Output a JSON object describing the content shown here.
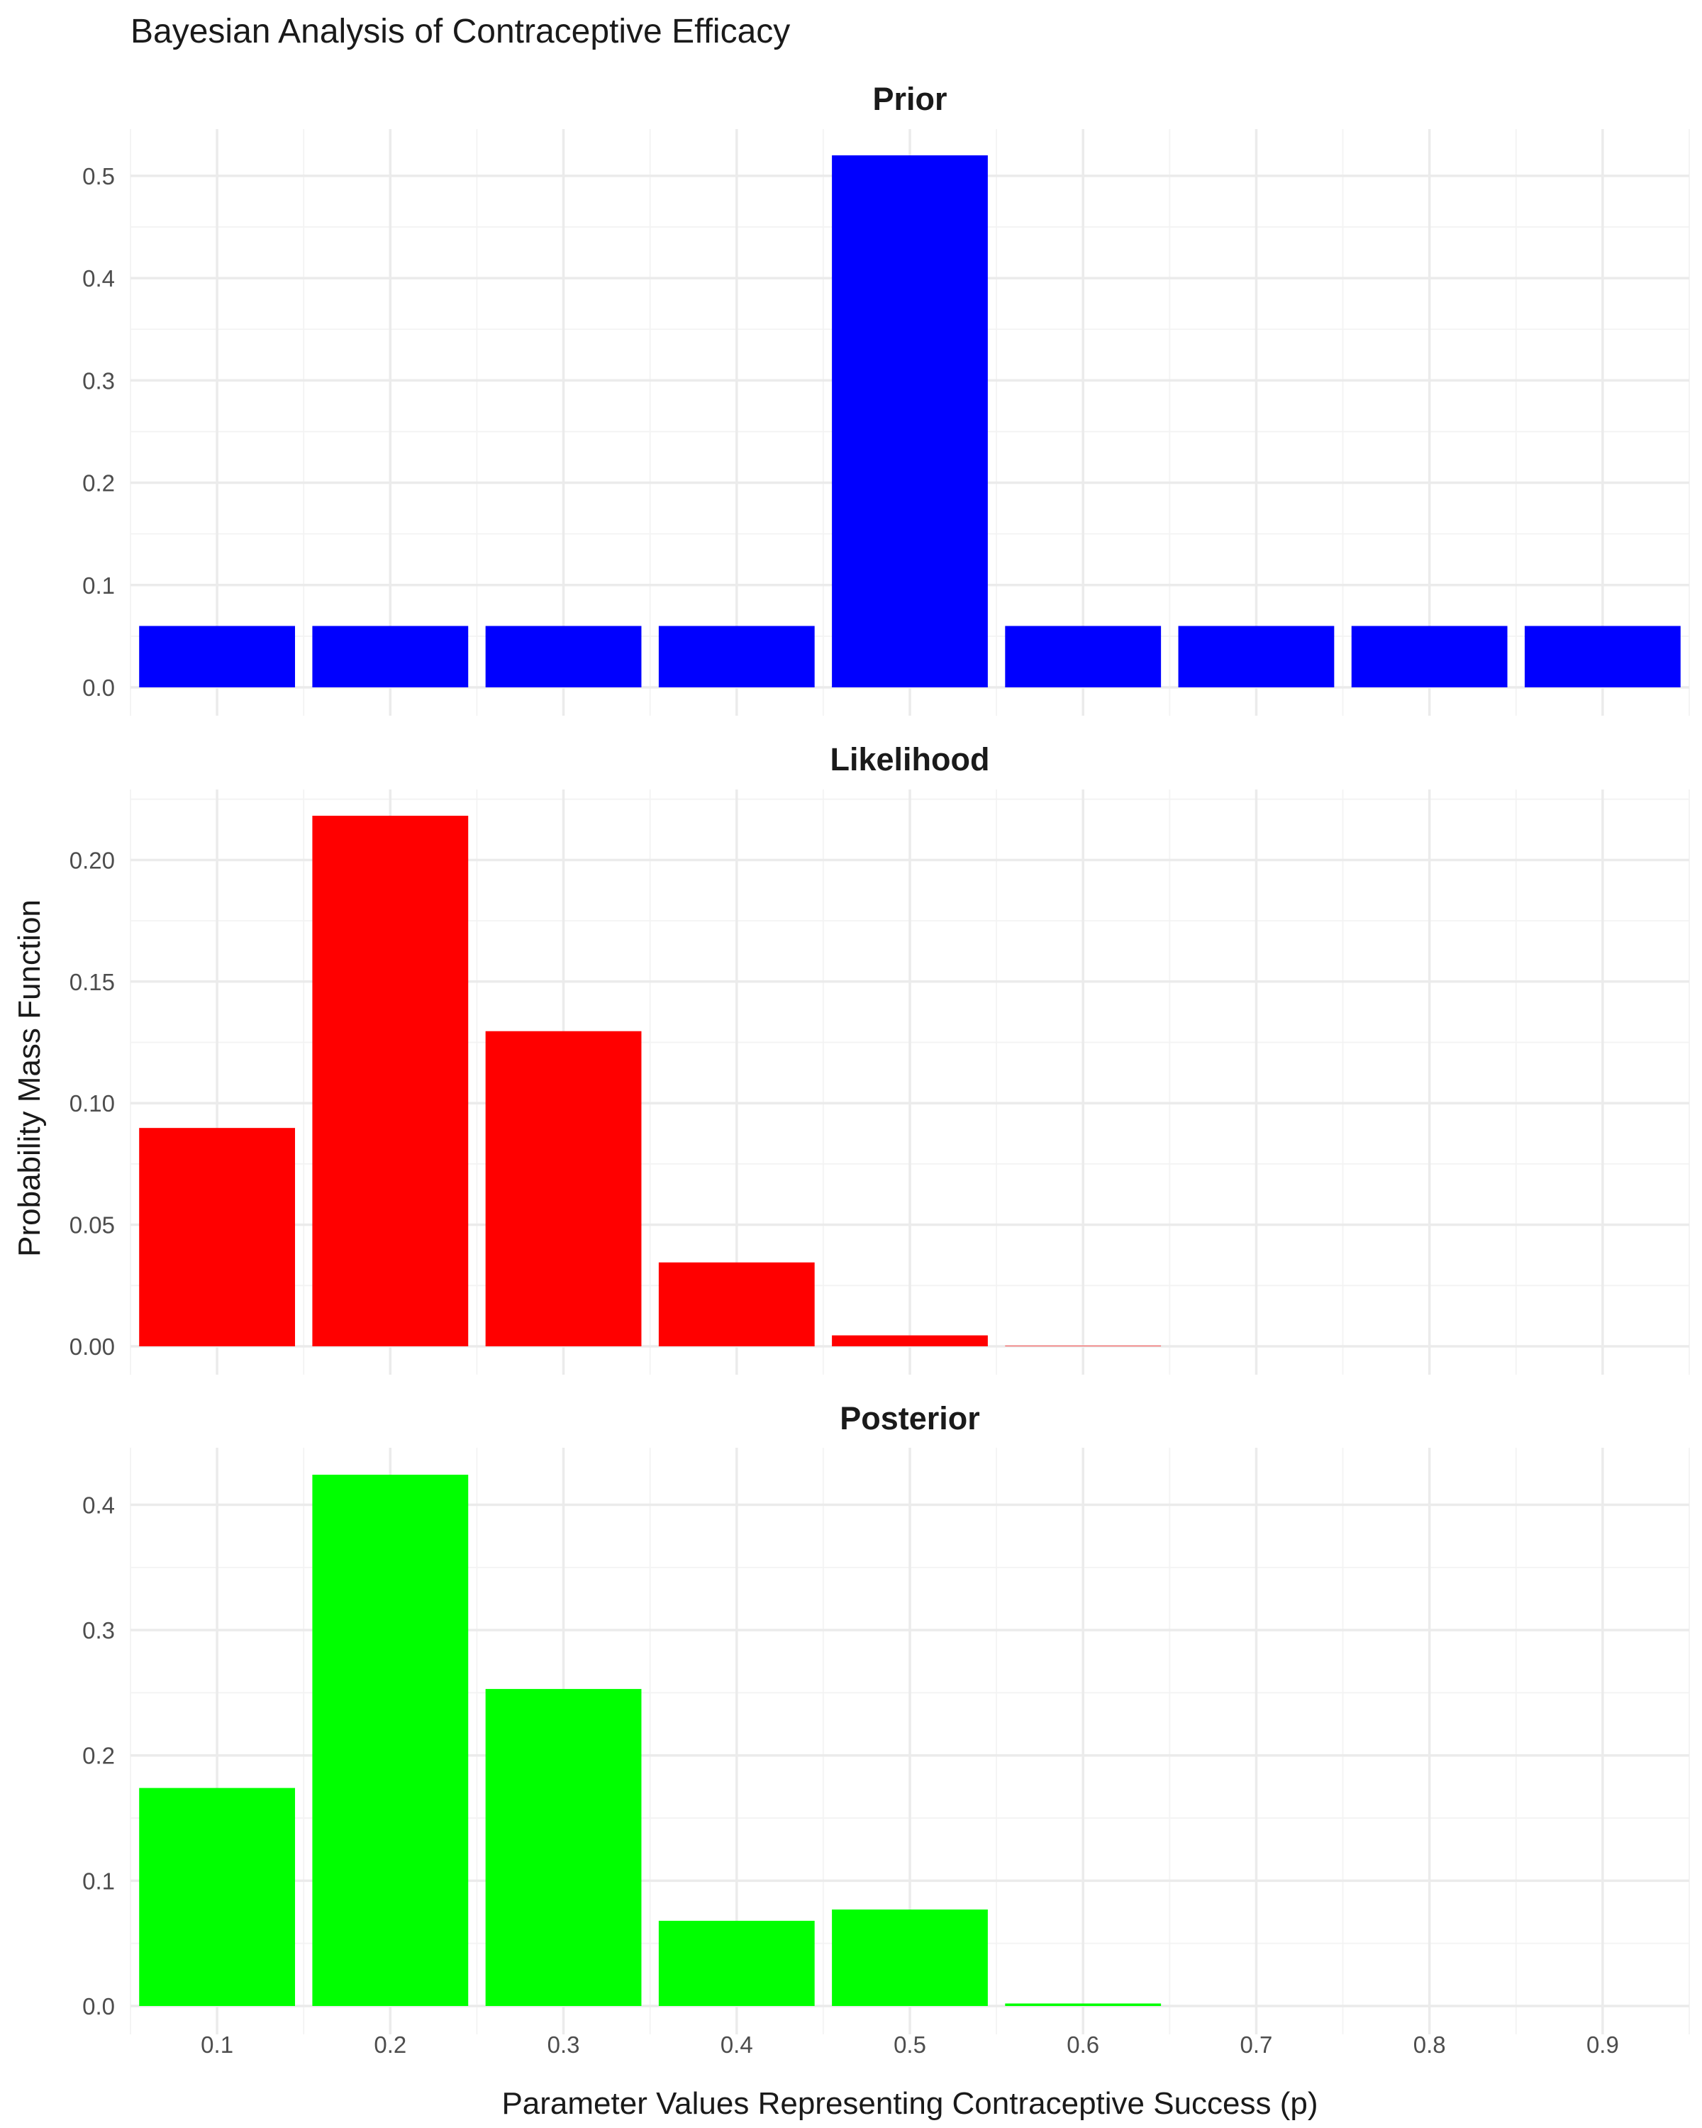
{
  "chart_data": {
    "type": "bar",
    "title": "Bayesian Analysis of Contraceptive Efficacy",
    "xlabel": "Parameter Values Representing Contraceptive Success (p)",
    "ylabel": "Probability Mass Function",
    "x": [
      0.1,
      0.2,
      0.3,
      0.4,
      0.5,
      0.6,
      0.7,
      0.8,
      0.9
    ],
    "x_tick_labels": [
      "0.1",
      "0.2",
      "0.3",
      "0.4",
      "0.5",
      "0.6",
      "0.7",
      "0.8",
      "0.9"
    ],
    "xlim": [
      0.05,
      0.95
    ],
    "grid": true,
    "legend": "none",
    "facets": [
      {
        "name": "Prior",
        "color": "#0000FF",
        "values": [
          0.06,
          0.06,
          0.06,
          0.06,
          0.52,
          0.06,
          0.06,
          0.06,
          0.06
        ],
        "ylim": [
          0,
          0.52
        ],
        "y_ticks": [
          0.0,
          0.1,
          0.2,
          0.3,
          0.4,
          0.5
        ],
        "y_tick_labels": [
          "0.0",
          "0.1",
          "0.2",
          "0.3",
          "0.4",
          "0.5"
        ]
      },
      {
        "name": "Likelihood",
        "color": "#FF0000",
        "values": [
          0.0898,
          0.2182,
          0.1296,
          0.0345,
          0.0045,
          0.0002,
          0.0,
          0.0,
          0.0
        ],
        "ylim": [
          0,
          0.2182
        ],
        "y_ticks": [
          0.0,
          0.05,
          0.1,
          0.15,
          0.2
        ],
        "y_tick_labels": [
          "0.00",
          "0.05",
          "0.10",
          "0.15",
          "0.20"
        ]
      },
      {
        "name": "Posterior",
        "color": "#00FF00",
        "values": [
          0.174,
          0.424,
          0.253,
          0.068,
          0.077,
          0.002,
          0.0,
          0.0,
          0.0
        ],
        "ylim": [
          0,
          0.424
        ],
        "y_ticks": [
          0.0,
          0.1,
          0.2,
          0.3,
          0.4
        ],
        "y_tick_labels": [
          "0.0",
          "0.1",
          "0.2",
          "0.3",
          "0.4"
        ]
      }
    ]
  }
}
